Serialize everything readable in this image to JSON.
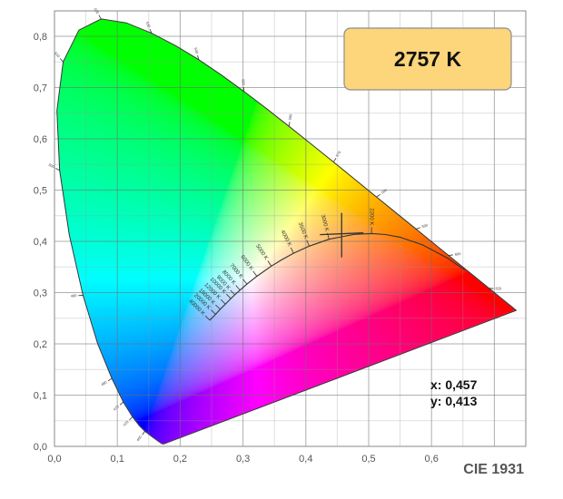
{
  "chart_data": {
    "type": "scatter",
    "title": "CIE 1931",
    "xlim": [
      0,
      0.75
    ],
    "ylim": [
      0,
      0.85
    ],
    "grid": true,
    "x_ticks": [
      "0,0",
      "0,1",
      "0,2",
      "0,3",
      "0,4",
      "0,5",
      "0,6"
    ],
    "y_ticks": [
      "0,0",
      "0,1",
      "0,2",
      "0,3",
      "0,4",
      "0,5",
      "0,6",
      "0,7",
      "0,8"
    ],
    "spectral_locus": [
      [
        380,
        0.1741,
        0.005
      ],
      [
        400,
        0.1733,
        0.0048
      ],
      [
        420,
        0.1714,
        0.0051
      ],
      [
        430,
        0.1689,
        0.0069
      ],
      [
        440,
        0.1644,
        0.0109
      ],
      [
        450,
        0.1566,
        0.0177
      ],
      [
        460,
        0.144,
        0.0297
      ],
      [
        465,
        0.1355,
        0.0399
      ],
      [
        470,
        0.1241,
        0.0578
      ],
      [
        475,
        0.1096,
        0.0868
      ],
      [
        480,
        0.0913,
        0.1327
      ],
      [
        485,
        0.0687,
        0.2007
      ],
      [
        490,
        0.0454,
        0.295
      ],
      [
        495,
        0.0235,
        0.4127
      ],
      [
        500,
        0.0082,
        0.5384
      ],
      [
        505,
        0.0039,
        0.6548
      ],
      [
        510,
        0.0139,
        0.7502
      ],
      [
        515,
        0.0389,
        0.812
      ],
      [
        520,
        0.0743,
        0.8338
      ],
      [
        525,
        0.1142,
        0.8262
      ],
      [
        530,
        0.1547,
        0.8059
      ],
      [
        535,
        0.1929,
        0.7816
      ],
      [
        540,
        0.2296,
        0.7543
      ],
      [
        545,
        0.2658,
        0.7243
      ],
      [
        550,
        0.3016,
        0.6923
      ],
      [
        555,
        0.3373,
        0.6589
      ],
      [
        560,
        0.3731,
        0.6245
      ],
      [
        565,
        0.4087,
        0.5896
      ],
      [
        570,
        0.4441,
        0.5547
      ],
      [
        575,
        0.4788,
        0.5202
      ],
      [
        580,
        0.5125,
        0.4866
      ],
      [
        585,
        0.5448,
        0.4544
      ],
      [
        590,
        0.5752,
        0.4242
      ],
      [
        595,
        0.6029,
        0.3965
      ],
      [
        600,
        0.627,
        0.3725
      ],
      [
        605,
        0.6482,
        0.3514
      ],
      [
        610,
        0.6658,
        0.334
      ],
      [
        620,
        0.6915,
        0.3083
      ],
      [
        630,
        0.7079,
        0.292
      ],
      [
        640,
        0.719,
        0.2809
      ],
      [
        650,
        0.726,
        0.274
      ],
      [
        700,
        0.7347,
        0.2653
      ]
    ],
    "wavelength_labels": [
      460,
      470,
      475,
      480,
      490,
      500,
      510,
      520,
      530,
      540,
      550,
      560,
      570,
      580,
      590,
      600,
      620
    ],
    "planckian_locus": [
      [
        1000,
        0.6528,
        0.3444
      ],
      [
        1200,
        0.6251,
        0.3674
      ],
      [
        1500,
        0.5857,
        0.3931
      ],
      [
        1800,
        0.5497,
        0.4081
      ],
      [
        2000,
        0.5267,
        0.4133
      ],
      [
        2200,
        0.5045,
        0.4152
      ],
      [
        2500,
        0.477,
        0.4137
      ],
      [
        3000,
        0.4369,
        0.4041
      ],
      [
        3500,
        0.4053,
        0.3907
      ],
      [
        4000,
        0.3805,
        0.3768
      ],
      [
        4500,
        0.3608,
        0.3636
      ],
      [
        5000,
        0.3451,
        0.3516
      ],
      [
        6000,
        0.3221,
        0.3318
      ],
      [
        7000,
        0.3064,
        0.3166
      ],
      [
        8000,
        0.2952,
        0.3048
      ],
      [
        9000,
        0.2869,
        0.2956
      ],
      [
        10000,
        0.2807,
        0.2884
      ],
      [
        12000,
        0.272,
        0.2776
      ],
      [
        15000,
        0.2637,
        0.2675
      ],
      [
        20000,
        0.2565,
        0.2577
      ],
      [
        40000,
        0.2471,
        0.2461
      ]
    ],
    "cct_labels": [
      [
        2200,
        "2200 K"
      ],
      [
        3000,
        "3000 K"
      ],
      [
        3500,
        "3500 K"
      ],
      [
        4000,
        "4000 K"
      ],
      [
        5000,
        "5000 K"
      ],
      [
        6000,
        "6000 K"
      ],
      [
        7000,
        "7000 K"
      ],
      [
        8000,
        "8000 K"
      ],
      [
        9000,
        "9000 K"
      ],
      [
        10000,
        "10000 K"
      ],
      [
        12000,
        "12000 K"
      ],
      [
        15000,
        "15000 K"
      ],
      [
        20000,
        "20000 K"
      ],
      [
        40000,
        "40000 K"
      ]
    ],
    "point": {
      "x": 0.457,
      "y": 0.413
    }
  },
  "cct_box": {
    "label": "2757 K",
    "color": "#fdd57a"
  },
  "readout": {
    "x": "x: 0,457",
    "y": "y: 0,413"
  },
  "footer": "CIE 1931"
}
